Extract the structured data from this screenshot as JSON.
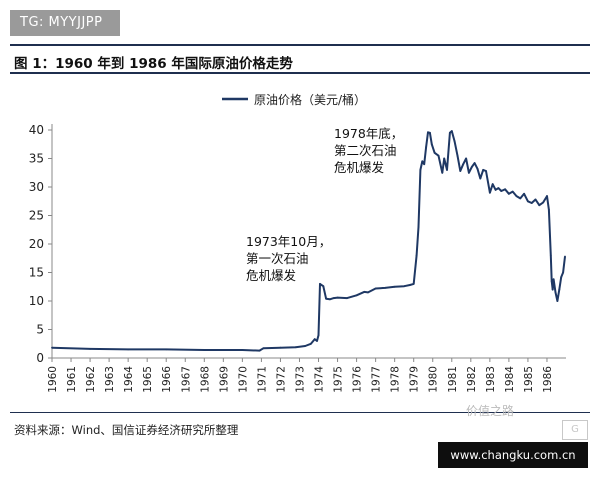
{
  "badge": {
    "text": "TG: MYYJJPP"
  },
  "figure": {
    "title": "图 1：1960 年到 1986 年国际原油价格走势"
  },
  "source": {
    "text": "资料来源：Wind、国信证券经济研究所整理"
  },
  "watermarks": {
    "wechat_text": "价值之路",
    "wechat_logo_text": "G",
    "url_text": "www.changku.com.cn"
  },
  "colors": {
    "series": "#1f3864",
    "axis": "#888888",
    "title_rule": "#1f2f4f"
  },
  "chart_data": {
    "type": "line",
    "title": "",
    "xlabel": "",
    "ylabel": "",
    "legend": {
      "position": "top-center",
      "entries": [
        "原油价格（美元/桶）"
      ]
    },
    "grid": false,
    "xlim": [
      1960,
      1987
    ],
    "ylim": [
      0,
      40
    ],
    "yticks": [
      0,
      5,
      10,
      15,
      20,
      25,
      30,
      35,
      40
    ],
    "xticks": [
      "1960",
      "1961",
      "1962",
      "1963",
      "1964",
      "1965",
      "1966",
      "1967",
      "1968",
      "1969",
      "1970",
      "1971",
      "1972",
      "1973",
      "1974",
      "1975",
      "1976",
      "1977",
      "1978",
      "1979",
      "1980",
      "1981",
      "1982",
      "1983",
      "1984",
      "1985",
      "1986"
    ],
    "series": [
      {
        "name": "原油价格（美元/桶）",
        "x": [
          1960.0,
          1962.0,
          1964.0,
          1966.0,
          1968.0,
          1970.0,
          1970.9,
          1971.1,
          1972.0,
          1972.8,
          1973.3,
          1973.6,
          1973.8,
          1973.92,
          1974.0,
          1974.08,
          1974.25,
          1974.4,
          1974.6,
          1974.8,
          1975.0,
          1975.5,
          1976.0,
          1976.4,
          1976.6,
          1977.0,
          1977.5,
          1978.0,
          1978.5,
          1978.8,
          1979.0,
          1979.15,
          1979.25,
          1979.35,
          1979.45,
          1979.55,
          1979.65,
          1979.75,
          1979.85,
          1979.95,
          1980.1,
          1980.3,
          1980.5,
          1980.6,
          1980.75,
          1980.9,
          1981.0,
          1981.15,
          1981.3,
          1981.45,
          1981.6,
          1981.75,
          1981.9,
          1982.05,
          1982.2,
          1982.35,
          1982.5,
          1982.65,
          1982.8,
          1983.0,
          1983.15,
          1983.3,
          1983.45,
          1983.6,
          1983.8,
          1984.0,
          1984.2,
          1984.4,
          1984.6,
          1984.8,
          1985.0,
          1985.2,
          1985.4,
          1985.6,
          1985.8,
          1986.0,
          1986.1,
          1986.2,
          1986.25,
          1986.3,
          1986.35,
          1986.45,
          1986.55,
          1986.65,
          1986.75,
          1986.85,
          1986.95
        ],
        "y": [
          1.8,
          1.6,
          1.5,
          1.5,
          1.4,
          1.4,
          1.3,
          1.7,
          1.8,
          1.9,
          2.1,
          2.5,
          3.3,
          3.0,
          4.0,
          13.0,
          12.6,
          10.4,
          10.3,
          10.5,
          10.6,
          10.5,
          11.0,
          11.6,
          11.5,
          12.2,
          12.3,
          12.5,
          12.6,
          12.8,
          13.0,
          18.0,
          23.0,
          33.0,
          34.5,
          34.0,
          37.0,
          39.6,
          39.5,
          37.5,
          36.0,
          35.5,
          32.5,
          35.0,
          33.0,
          39.5,
          39.8,
          38.0,
          35.5,
          32.8,
          34.0,
          35.0,
          32.5,
          33.5,
          34.2,
          33.2,
          31.5,
          33.0,
          32.8,
          29.0,
          30.5,
          29.5,
          29.8,
          29.3,
          29.6,
          28.8,
          29.2,
          28.4,
          28.0,
          28.8,
          27.5,
          27.2,
          27.8,
          26.8,
          27.3,
          28.4,
          26.0,
          18.0,
          13.5,
          12.0,
          13.8,
          11.5,
          10.0,
          12.0,
          14.2,
          15.0,
          17.8
        ]
      }
    ],
    "annotations": [
      {
        "lines": [
          "1973年10月，",
          "第一次石油",
          "危机爆发"
        ],
        "x": 1973.83,
        "y": 3.3
      },
      {
        "lines": [
          "1978年底，",
          "第二次石油",
          "危机爆发"
        ],
        "x": 1978.95,
        "y": 13.0
      }
    ]
  }
}
